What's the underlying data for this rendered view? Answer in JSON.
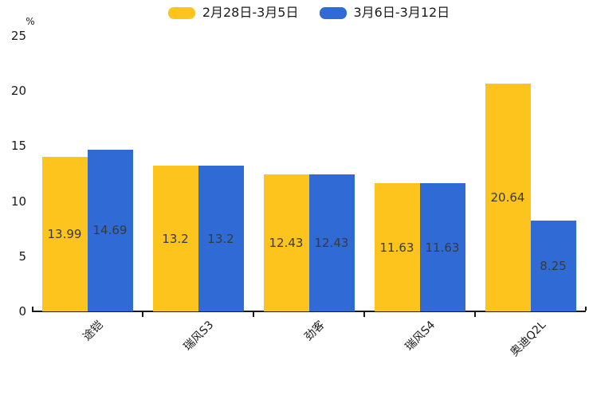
{
  "legend": {
    "items": [
      {
        "label": "2月28日-3月5日",
        "color": "#FCC41D"
      },
      {
        "label": "3月6日-3月12日",
        "color": "#2F6AD5"
      }
    ]
  },
  "chart_data": {
    "type": "bar",
    "title": "",
    "categories": [
      "途铠",
      "瑞风S3",
      "劲客",
      "瑞风S4",
      "奥迪Q2L"
    ],
    "series": [
      {
        "name": "2月28日-3月5日",
        "color": "#FCC41D",
        "values": [
          13.99,
          13.2,
          12.43,
          11.63,
          20.64
        ]
      },
      {
        "name": "3月6日-3月12日",
        "color": "#2F6AD5",
        "values": [
          14.69,
          13.2,
          12.43,
          11.63,
          8.25
        ]
      }
    ],
    "xlabel": "",
    "ylabel": "%",
    "yticks": [
      0,
      5,
      10,
      15,
      20,
      25
    ],
    "ylim": [
      0,
      25
    ],
    "grid": false,
    "legend_position": "top-center",
    "value_labels": "inside-center",
    "x_label_rotation": 45,
    "axis_color": "#1a1a1a",
    "label_color": "#3a3a3a"
  }
}
